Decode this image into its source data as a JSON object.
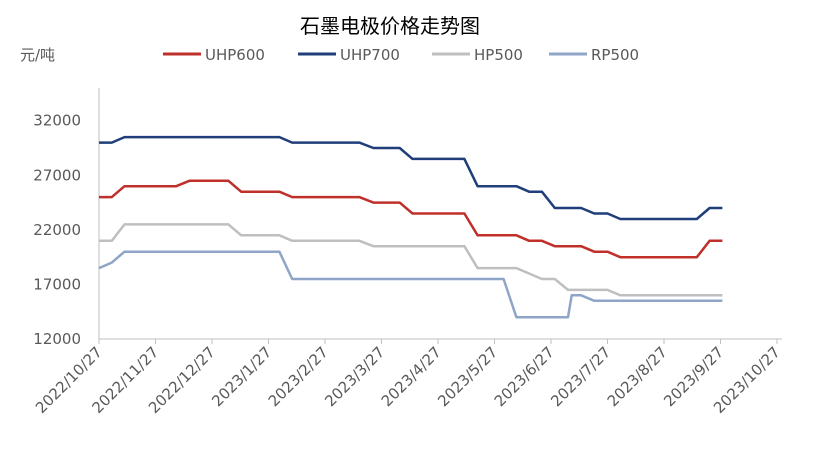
{
  "chart_data": {
    "type": "line",
    "title": "石墨电极价格走势图",
    "unit_label": "元/吨",
    "legend_position": "top",
    "grid": false,
    "ylim": [
      12000,
      35000
    ],
    "y_ticks": [
      12000,
      17000,
      22000,
      27000,
      32000
    ],
    "y_tick_labels": [
      "12000",
      "17000",
      "22000",
      "27000",
      "32000"
    ],
    "x_tick_labels": [
      "2022/10/27",
      "2022/11/27",
      "2022/12/27",
      "2023/1/27",
      "2023/2/27",
      "2023/3/27",
      "2023/4/27",
      "2023/5/27",
      "2023/6/27",
      "2023/7/27",
      "2023/8/27",
      "2023/9/27",
      "2023/10/27"
    ],
    "series": [
      {
        "name": "UHP600",
        "color": "#c0302b",
        "points": [
          [
            "2022-10-27",
            25000
          ],
          [
            "2022-11-03",
            25000
          ],
          [
            "2022-11-10",
            26000
          ],
          [
            "2022-11-17",
            26000
          ],
          [
            "2022-11-24",
            26000
          ],
          [
            "2022-12-01",
            26000
          ],
          [
            "2022-12-08",
            26000
          ],
          [
            "2022-12-15",
            26500
          ],
          [
            "2022-12-22",
            26500
          ],
          [
            "2022-12-29",
            26500
          ],
          [
            "2023-01-05",
            26500
          ],
          [
            "2023-01-12",
            25500
          ],
          [
            "2023-01-19",
            25500
          ],
          [
            "2023-01-26",
            25500
          ],
          [
            "2023-02-02",
            25500
          ],
          [
            "2023-02-09",
            25000
          ],
          [
            "2023-02-16",
            25000
          ],
          [
            "2023-02-23",
            25000
          ],
          [
            "2023-03-02",
            25000
          ],
          [
            "2023-03-09",
            25000
          ],
          [
            "2023-03-16",
            25000
          ],
          [
            "2023-03-23",
            24500
          ],
          [
            "2023-03-30",
            24500
          ],
          [
            "2023-04-06",
            24500
          ],
          [
            "2023-04-13",
            23500
          ],
          [
            "2023-04-20",
            23500
          ],
          [
            "2023-04-27",
            23500
          ],
          [
            "2023-05-04",
            23500
          ],
          [
            "2023-05-11",
            23500
          ],
          [
            "2023-05-18",
            21500
          ],
          [
            "2023-05-25",
            21500
          ],
          [
            "2023-06-01",
            21500
          ],
          [
            "2023-06-08",
            21500
          ],
          [
            "2023-06-15",
            21000
          ],
          [
            "2023-06-22",
            21000
          ],
          [
            "2023-06-29",
            20500
          ],
          [
            "2023-07-06",
            20500
          ],
          [
            "2023-07-13",
            20500
          ],
          [
            "2023-07-20",
            20000
          ],
          [
            "2023-07-27",
            20000
          ],
          [
            "2023-08-03",
            19500
          ],
          [
            "2023-08-10",
            19500
          ],
          [
            "2023-08-17",
            19500
          ],
          [
            "2023-08-24",
            19500
          ],
          [
            "2023-08-31",
            19500
          ],
          [
            "2023-09-07",
            19500
          ],
          [
            "2023-09-14",
            19500
          ],
          [
            "2023-09-21",
            21000
          ],
          [
            "2023-09-28",
            21000
          ]
        ]
      },
      {
        "name": "UHP700",
        "color": "#1f3e7a",
        "points": [
          [
            "2022-10-27",
            30000
          ],
          [
            "2022-11-03",
            30000
          ],
          [
            "2022-11-10",
            30500
          ],
          [
            "2022-11-17",
            30500
          ],
          [
            "2022-11-24",
            30500
          ],
          [
            "2022-12-01",
            30500
          ],
          [
            "2022-12-08",
            30500
          ],
          [
            "2022-12-15",
            30500
          ],
          [
            "2022-12-22",
            30500
          ],
          [
            "2022-12-29",
            30500
          ],
          [
            "2023-01-05",
            30500
          ],
          [
            "2023-01-12",
            30500
          ],
          [
            "2023-01-19",
            30500
          ],
          [
            "2023-01-26",
            30500
          ],
          [
            "2023-02-02",
            30500
          ],
          [
            "2023-02-09",
            30000
          ],
          [
            "2023-02-16",
            30000
          ],
          [
            "2023-02-23",
            30000
          ],
          [
            "2023-03-02",
            30000
          ],
          [
            "2023-03-09",
            30000
          ],
          [
            "2023-03-16",
            30000
          ],
          [
            "2023-03-23",
            29500
          ],
          [
            "2023-03-30",
            29500
          ],
          [
            "2023-04-06",
            29500
          ],
          [
            "2023-04-13",
            28500
          ],
          [
            "2023-04-20",
            28500
          ],
          [
            "2023-04-27",
            28500
          ],
          [
            "2023-05-04",
            28500
          ],
          [
            "2023-05-11",
            28500
          ],
          [
            "2023-05-18",
            26000
          ],
          [
            "2023-05-25",
            26000
          ],
          [
            "2023-06-01",
            26000
          ],
          [
            "2023-06-08",
            26000
          ],
          [
            "2023-06-15",
            25500
          ],
          [
            "2023-06-22",
            25500
          ],
          [
            "2023-06-29",
            24000
          ],
          [
            "2023-07-06",
            24000
          ],
          [
            "2023-07-13",
            24000
          ],
          [
            "2023-07-20",
            23500
          ],
          [
            "2023-07-27",
            23500
          ],
          [
            "2023-08-03",
            23000
          ],
          [
            "2023-08-10",
            23000
          ],
          [
            "2023-08-17",
            23000
          ],
          [
            "2023-08-24",
            23000
          ],
          [
            "2023-08-31",
            23000
          ],
          [
            "2023-09-07",
            23000
          ],
          [
            "2023-09-14",
            23000
          ],
          [
            "2023-09-21",
            24000
          ],
          [
            "2023-09-28",
            24000
          ]
        ]
      },
      {
        "name": "HP500",
        "color": "#bfbfbf",
        "points": [
          [
            "2022-10-27",
            21000
          ],
          [
            "2022-11-03",
            21000
          ],
          [
            "2022-11-10",
            22500
          ],
          [
            "2022-11-17",
            22500
          ],
          [
            "2022-11-24",
            22500
          ],
          [
            "2022-12-01",
            22500
          ],
          [
            "2022-12-08",
            22500
          ],
          [
            "2022-12-15",
            22500
          ],
          [
            "2022-12-22",
            22500
          ],
          [
            "2022-12-29",
            22500
          ],
          [
            "2023-01-05",
            22500
          ],
          [
            "2023-01-12",
            21500
          ],
          [
            "2023-01-19",
            21500
          ],
          [
            "2023-01-26",
            21500
          ],
          [
            "2023-02-02",
            21500
          ],
          [
            "2023-02-09",
            21000
          ],
          [
            "2023-02-16",
            21000
          ],
          [
            "2023-02-23",
            21000
          ],
          [
            "2023-03-02",
            21000
          ],
          [
            "2023-03-09",
            21000
          ],
          [
            "2023-03-16",
            21000
          ],
          [
            "2023-03-23",
            20500
          ],
          [
            "2023-03-30",
            20500
          ],
          [
            "2023-04-06",
            20500
          ],
          [
            "2023-04-13",
            20500
          ],
          [
            "2023-04-20",
            20500
          ],
          [
            "2023-04-27",
            20500
          ],
          [
            "2023-05-04",
            20500
          ],
          [
            "2023-05-11",
            20500
          ],
          [
            "2023-05-18",
            18500
          ],
          [
            "2023-05-25",
            18500
          ],
          [
            "2023-06-01",
            18500
          ],
          [
            "2023-06-08",
            18500
          ],
          [
            "2023-06-15",
            18000
          ],
          [
            "2023-06-22",
            17500
          ],
          [
            "2023-06-29",
            17500
          ],
          [
            "2023-07-06",
            16500
          ],
          [
            "2023-07-13",
            16500
          ],
          [
            "2023-07-20",
            16500
          ],
          [
            "2023-07-27",
            16500
          ],
          [
            "2023-08-03",
            16000
          ],
          [
            "2023-08-10",
            16000
          ],
          [
            "2023-08-17",
            16000
          ],
          [
            "2023-08-24",
            16000
          ],
          [
            "2023-08-31",
            16000
          ],
          [
            "2023-09-07",
            16000
          ],
          [
            "2023-09-14",
            16000
          ],
          [
            "2023-09-21",
            16000
          ],
          [
            "2023-09-28",
            16000
          ]
        ]
      },
      {
        "name": "RP500",
        "color": "#8ea5c8",
        "points": [
          [
            "2022-10-27",
            18500
          ],
          [
            "2022-11-03",
            19000
          ],
          [
            "2022-11-10",
            20000
          ],
          [
            "2022-11-17",
            20000
          ],
          [
            "2022-11-24",
            20000
          ],
          [
            "2022-12-01",
            20000
          ],
          [
            "2022-12-08",
            20000
          ],
          [
            "2022-12-15",
            20000
          ],
          [
            "2022-12-22",
            20000
          ],
          [
            "2022-12-29",
            20000
          ],
          [
            "2023-01-05",
            20000
          ],
          [
            "2023-01-12",
            20000
          ],
          [
            "2023-01-19",
            20000
          ],
          [
            "2023-01-26",
            20000
          ],
          [
            "2023-02-02",
            20000
          ],
          [
            "2023-02-09",
            17500
          ],
          [
            "2023-02-16",
            17500
          ],
          [
            "2023-02-23",
            17500
          ],
          [
            "2023-03-02",
            17500
          ],
          [
            "2023-03-09",
            17500
          ],
          [
            "2023-03-16",
            17500
          ],
          [
            "2023-03-23",
            17500
          ],
          [
            "2023-03-30",
            17500
          ],
          [
            "2023-04-06",
            17500
          ],
          [
            "2023-04-13",
            17500
          ],
          [
            "2023-04-20",
            17500
          ],
          [
            "2023-04-27",
            17500
          ],
          [
            "2023-05-04",
            17500
          ],
          [
            "2023-05-11",
            17500
          ],
          [
            "2023-05-18",
            17500
          ],
          [
            "2023-05-25",
            17500
          ],
          [
            "2023-06-01",
            17500
          ],
          [
            "2023-06-08",
            14000
          ],
          [
            "2023-06-15",
            14000
          ],
          [
            "2023-06-22",
            14000
          ],
          [
            "2023-06-29",
            14000
          ],
          [
            "2023-07-06",
            14000
          ],
          [
            "2023-07-08",
            16000
          ],
          [
            "2023-07-13",
            16000
          ],
          [
            "2023-07-20",
            15500
          ],
          [
            "2023-07-27",
            15500
          ],
          [
            "2023-08-03",
            15500
          ],
          [
            "2023-08-10",
            15500
          ],
          [
            "2023-08-17",
            15500
          ],
          [
            "2023-08-24",
            15500
          ],
          [
            "2023-08-31",
            15500
          ],
          [
            "2023-09-07",
            15500
          ],
          [
            "2023-09-14",
            15500
          ],
          [
            "2023-09-21",
            15500
          ],
          [
            "2023-09-28",
            15500
          ]
        ]
      }
    ]
  }
}
